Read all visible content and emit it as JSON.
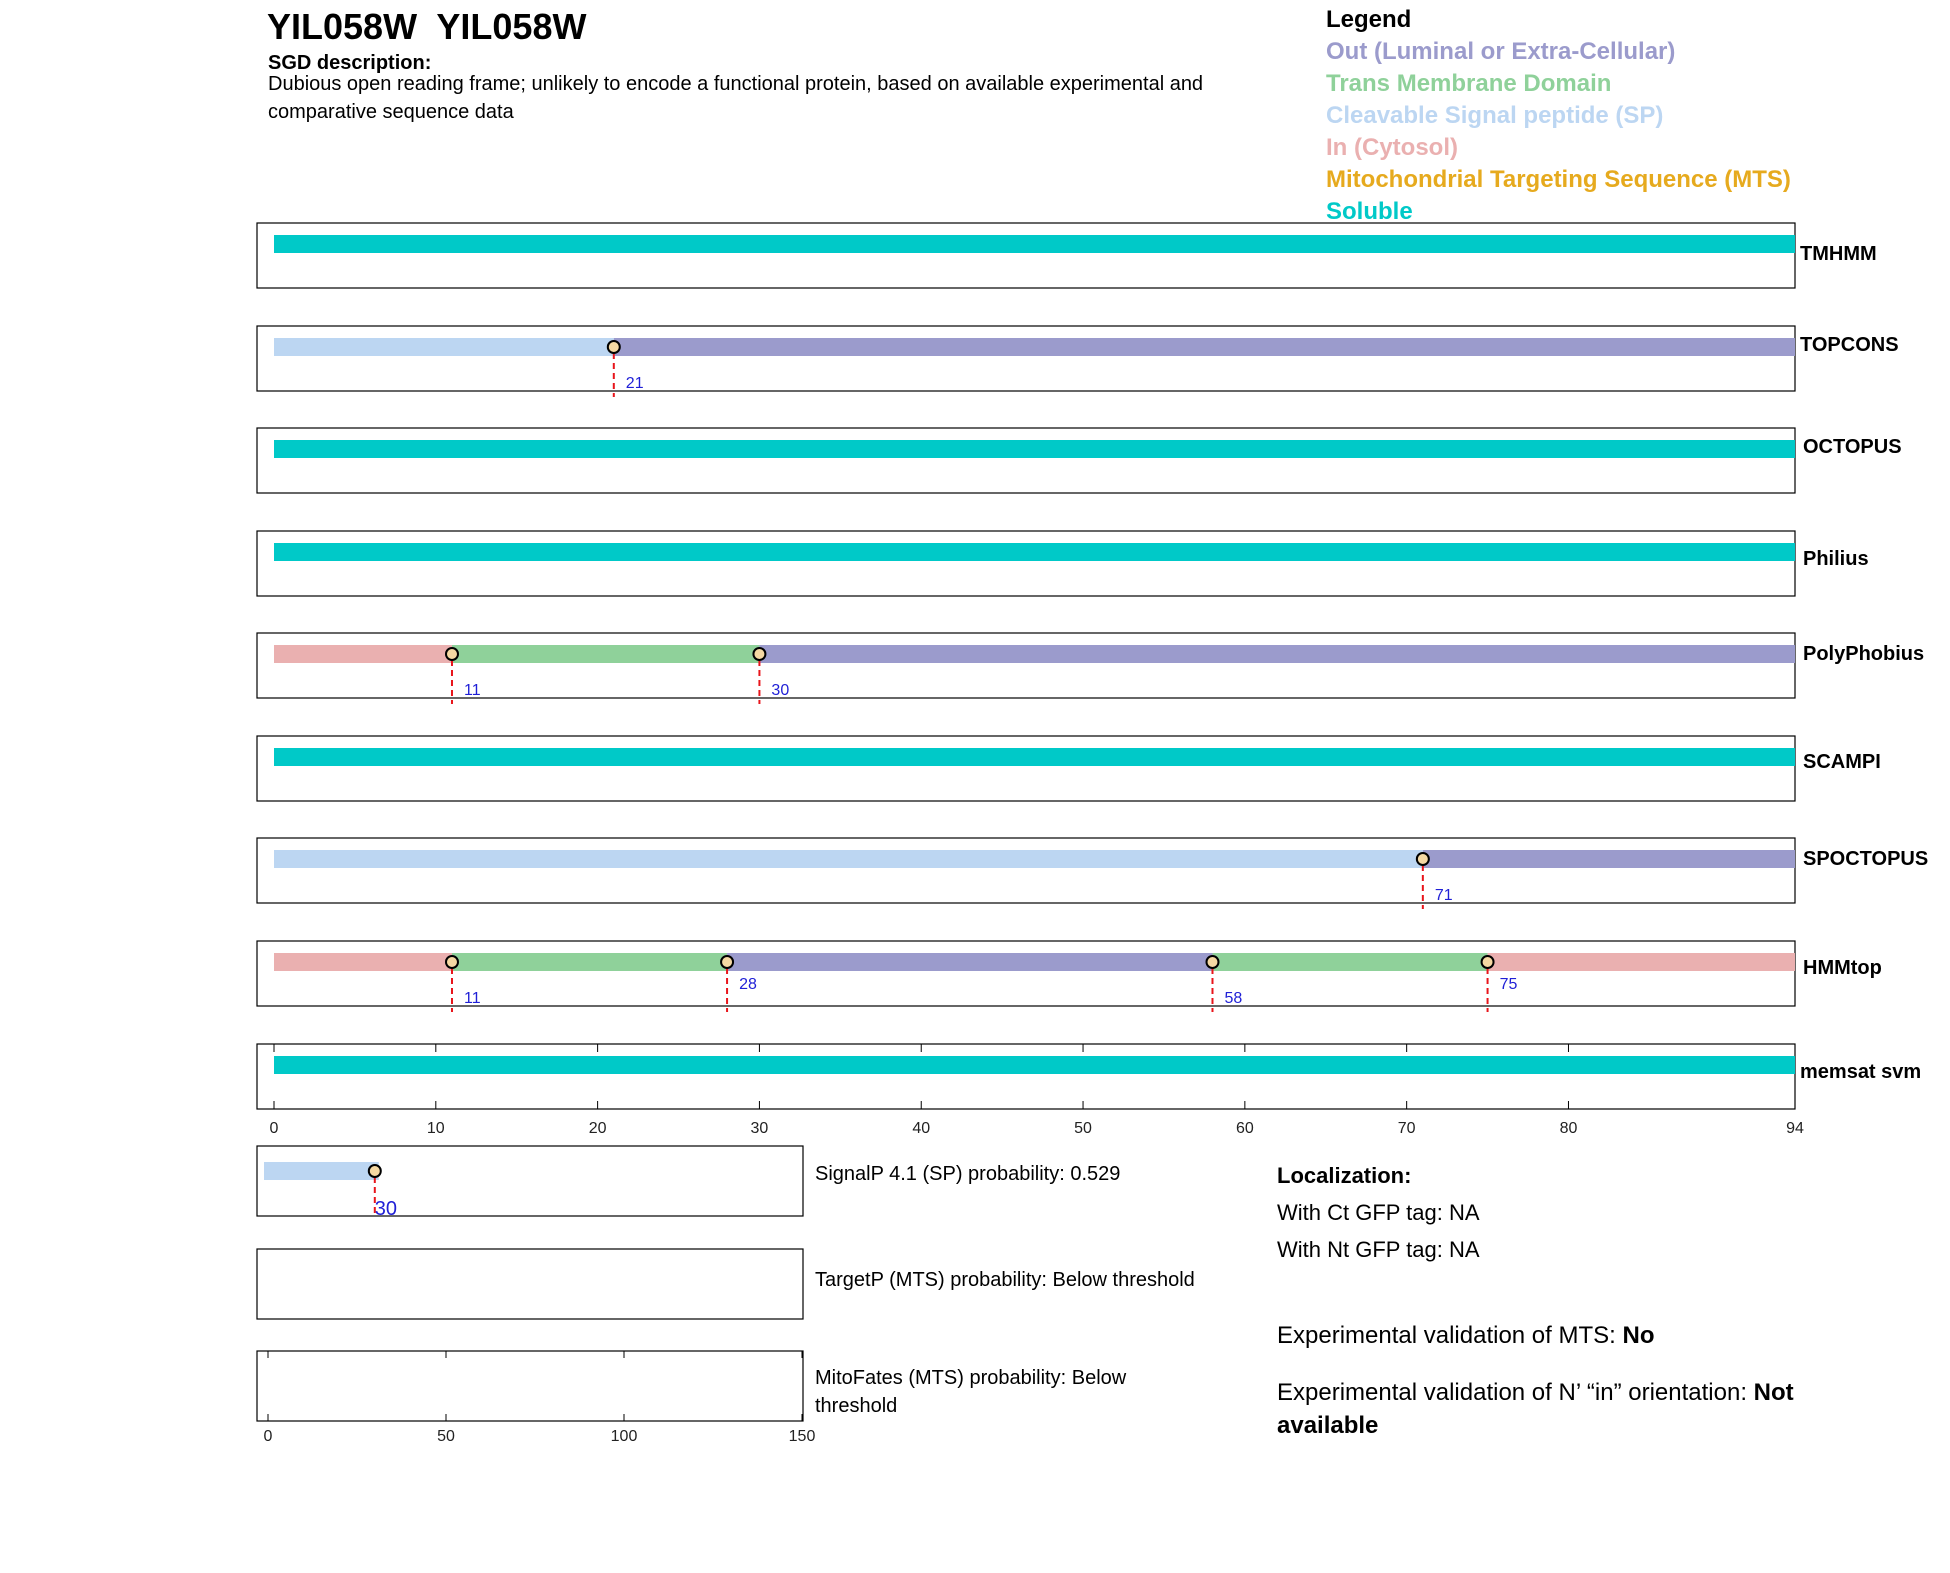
{
  "header": {
    "gene_title": "YIL058W  YIL058W",
    "sgd_label": "SGD description:",
    "sgd_description": "Dubious open reading frame; unlikely to encode a functional protein, based on available experimental and comparative sequence data"
  },
  "legend": {
    "title": "Legend",
    "items": [
      {
        "label": "Out (Luminal or Extra-Cellular)",
        "color": "#9b9bcc"
      },
      {
        "label": "Trans Membrane Domain",
        "color": "#8fd19a"
      },
      {
        "label": "Cleavable Signal peptide (SP)",
        "color": "#bcd6f2"
      },
      {
        "label": "In (Cytosol)",
        "color": "#eab0b0"
      },
      {
        "label": "Mitochondrial Targeting Sequence (MTS)",
        "color": "#e6aa1e"
      },
      {
        "label": "Soluble",
        "color": "#00c9c8"
      }
    ]
  },
  "chart_data": [
    {
      "type": "track",
      "xlim": [
        0,
        94
      ],
      "xticks": [
        0,
        10,
        20,
        30,
        40,
        50,
        60,
        70,
        80,
        94
      ],
      "tracks": [
        {
          "name": "TMHMM",
          "segments": [
            {
              "start": 0,
              "end": 94,
              "class": "soluble"
            }
          ],
          "boundaries": []
        },
        {
          "name": "TOPCONS",
          "segments": [
            {
              "start": 0,
              "end": 21,
              "class": "signal"
            },
            {
              "start": 21,
              "end": 94,
              "class": "out"
            }
          ],
          "boundaries": [
            21
          ]
        },
        {
          "name": "OCTOPUS",
          "segments": [
            {
              "start": 0,
              "end": 94,
              "class": "soluble"
            }
          ],
          "boundaries": []
        },
        {
          "name": "Philius",
          "segments": [
            {
              "start": 0,
              "end": 94,
              "class": "soluble"
            }
          ],
          "boundaries": []
        },
        {
          "name": "PolyPhobius",
          "segments": [
            {
              "start": 0,
              "end": 11,
              "class": "in"
            },
            {
              "start": 11,
              "end": 30,
              "class": "tm"
            },
            {
              "start": 30,
              "end": 94,
              "class": "out"
            }
          ],
          "boundaries": [
            11,
            30
          ]
        },
        {
          "name": "SCAMPI",
          "segments": [
            {
              "start": 0,
              "end": 94,
              "class": "soluble"
            }
          ],
          "boundaries": []
        },
        {
          "name": "SPOCTOPUS",
          "segments": [
            {
              "start": 0,
              "end": 71,
              "class": "signal"
            },
            {
              "start": 71,
              "end": 94,
              "class": "out"
            }
          ],
          "boundaries": [
            71
          ]
        },
        {
          "name": "HMMtop",
          "segments": [
            {
              "start": 0,
              "end": 11,
              "class": "in"
            },
            {
              "start": 11,
              "end": 28,
              "class": "tm"
            },
            {
              "start": 28,
              "end": 58,
              "class": "out"
            },
            {
              "start": 58,
              "end": 75,
              "class": "tm"
            },
            {
              "start": 75,
              "end": 94,
              "class": "in"
            }
          ],
          "boundaries": [
            11,
            28,
            58,
            75
          ]
        },
        {
          "name": "memsat svm",
          "segments": [
            {
              "start": 0,
              "end": 94,
              "class": "soluble"
            }
          ],
          "boundaries": []
        }
      ]
    },
    {
      "type": "track",
      "xlim": [
        0,
        150
      ],
      "xticks": [
        0,
        50,
        100,
        150
      ],
      "tracks": [
        {
          "name": "SignalP",
          "segments": [
            {
              "start": 0,
              "end": 30,
              "class": "signal"
            }
          ],
          "boundaries": [
            30
          ]
        },
        {
          "name": "TargetP",
          "segments": [],
          "boundaries": []
        },
        {
          "name": "MitoFates",
          "segments": [],
          "boundaries": []
        }
      ]
    }
  ],
  "colors": {
    "soluble": "#00c9c8",
    "signal": "#bcd6f2",
    "out": "#9b9bcc",
    "tm": "#8fd19a",
    "in": "#eab0b0",
    "boundary": "#e8151b",
    "boundary_label": "#1f1fd6"
  },
  "lower_panel": {
    "signalp_text": "SignalP 4.1 (SP) probability: 0.529",
    "targetp_text": "TargetP (MTS) probability: Below threshold",
    "mitofates_text": "MitoFates (MTS) probability: Below threshold"
  },
  "localization": {
    "title": "Localization:",
    "ct_gfp": "With Ct GFP tag: NA",
    "nt_gfp": "With Nt GFP tag: NA",
    "mts_prefix": "Experimental validation of MTS: ",
    "mts_value": "No",
    "nin_prefix": "Experimental validation of N’ “in” orientation: ",
    "nin_value": "Not available"
  }
}
